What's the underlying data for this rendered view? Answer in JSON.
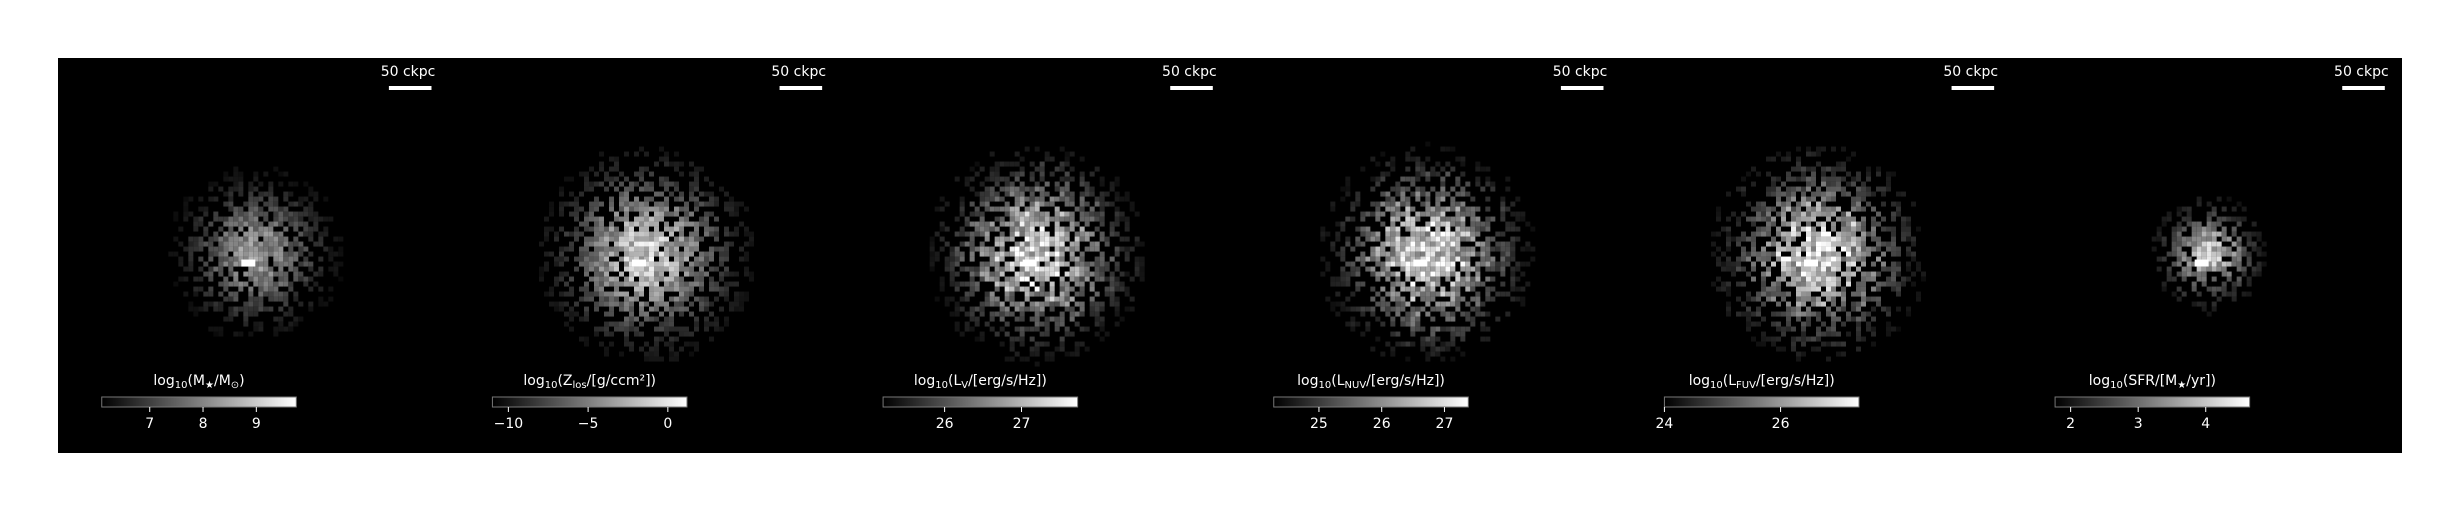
{
  "panels": [
    {
      "scale_label": "50 ckpc",
      "cbar": {
        "label": [
          "log",
          "10",
          "(M",
          "★",
          "/M",
          "⊙",
          ")"
        ],
        "lim": [
          6.1,
          9.75
        ],
        "ticks": [
          7,
          8,
          9
        ]
      }
    },
    {
      "scale_label": "50 ckpc",
      "cbar": {
        "label": [
          "log",
          "10",
          "(Z",
          "los",
          "/[g/ccm²])"
        ],
        "lim": [
          -11,
          1.2
        ],
        "ticks": [
          {
            "value": -10,
            "label": "−10"
          },
          {
            "value": -5,
            "label": "−5"
          },
          0
        ]
      }
    },
    {
      "scale_label": "50 ckpc",
      "cbar": {
        "label": [
          "log",
          "10",
          "(L",
          "V",
          "/[erg/s/Hz])"
        ],
        "lim": [
          25.2,
          27.73
        ],
        "ticks": [
          26,
          27
        ]
      }
    },
    {
      "scale_label": "50 ckpc",
      "cbar": {
        "label": [
          "log",
          "10",
          "(L",
          "NUV",
          "/[erg/s/Hz])"
        ],
        "lim": [
          24.28,
          27.38
        ],
        "ticks": [
          25,
          26,
          27
        ]
      }
    },
    {
      "scale_label": "50 ckpc",
      "cbar": {
        "label": [
          "log",
          "10",
          "(L",
          "FUV",
          "/[erg/s/Hz])"
        ],
        "lim": [
          24,
          27.35
        ],
        "ticks": [
          24,
          26
        ]
      }
    },
    {
      "scale_label": "50 ckpc",
      "cbar": {
        "label": [
          "log",
          "10",
          "(SFR/[M",
          "★",
          "/yr])"
        ],
        "lim": [
          1.77,
          4.65
        ],
        "ticks": [
          2,
          3,
          4
        ]
      }
    }
  ]
}
